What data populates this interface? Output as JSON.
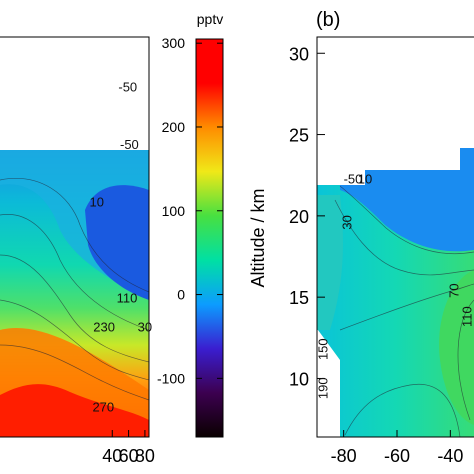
{
  "chart_data": [
    {
      "type": "heatmap",
      "panel_label": "",
      "x": {
        "range": [
          -100,
          85
        ],
        "ticks": [
          40,
          60,
          80
        ],
        "tick_labels": [
          "40",
          "60",
          "80"
        ]
      },
      "y": {
        "range": [
          6,
          31
        ],
        "ticks": [],
        "tick_labels": []
      },
      "contour_labels": [
        {
          "text": "-50",
          "x": 59,
          "y": 27.6
        },
        {
          "text": "-50",
          "x": 61,
          "y": 24.0
        },
        {
          "text": "10",
          "x": 21,
          "y": 20.4
        },
        {
          "text": "110",
          "x": 58,
          "y": 14.4
        },
        {
          "text": "30",
          "x": 80,
          "y": 12.6
        },
        {
          "text": "230",
          "x": 30,
          "y": 12.6
        },
        {
          "text": "270",
          "x": 29,
          "y": 7.6
        }
      ]
    },
    {
      "type": "colorbar",
      "unit": "pptv",
      "range": [
        -170,
        305
      ],
      "ticks": [
        300,
        200,
        100,
        0,
        -100
      ],
      "tick_labels": [
        "300",
        "200",
        "100",
        "0",
        "-100"
      ],
      "colors": [
        "#0a0000",
        "#3c0050",
        "#3a1ed0",
        "#0c9cff",
        "#00e0a4",
        "#48e040",
        "#f0e818",
        "#ff8c00",
        "#ff0000",
        "#ff0000"
      ]
    },
    {
      "type": "heatmap",
      "panel_label": "(b)",
      "ylabel": "Altitude / km",
      "x": {
        "range": [
          -90,
          -30
        ],
        "ticks": [
          -80,
          -60,
          -40
        ],
        "tick_labels": [
          "-80",
          "-60",
          "-40"
        ]
      },
      "y": {
        "range": [
          6.4,
          31
        ],
        "ticks": [
          10,
          15,
          20,
          25,
          30
        ],
        "tick_labels": [
          "10",
          "15",
          "20",
          "25",
          "30"
        ]
      },
      "contour_labels": [
        {
          "text": "-50",
          "x": -76.5,
          "y": 22.0
        },
        {
          "text": "10",
          "x": -72,
          "y": 22.0
        },
        {
          "text": "30",
          "x": -77,
          "y": 19.6
        },
        {
          "text": "70",
          "x": -37,
          "y": 15.4
        },
        {
          "text": "110",
          "x": -32,
          "y": 13.8
        },
        {
          "text": "150",
          "x": -86,
          "y": 11.8
        },
        {
          "text": "190",
          "x": -86,
          "y": 9.4
        }
      ]
    }
  ]
}
